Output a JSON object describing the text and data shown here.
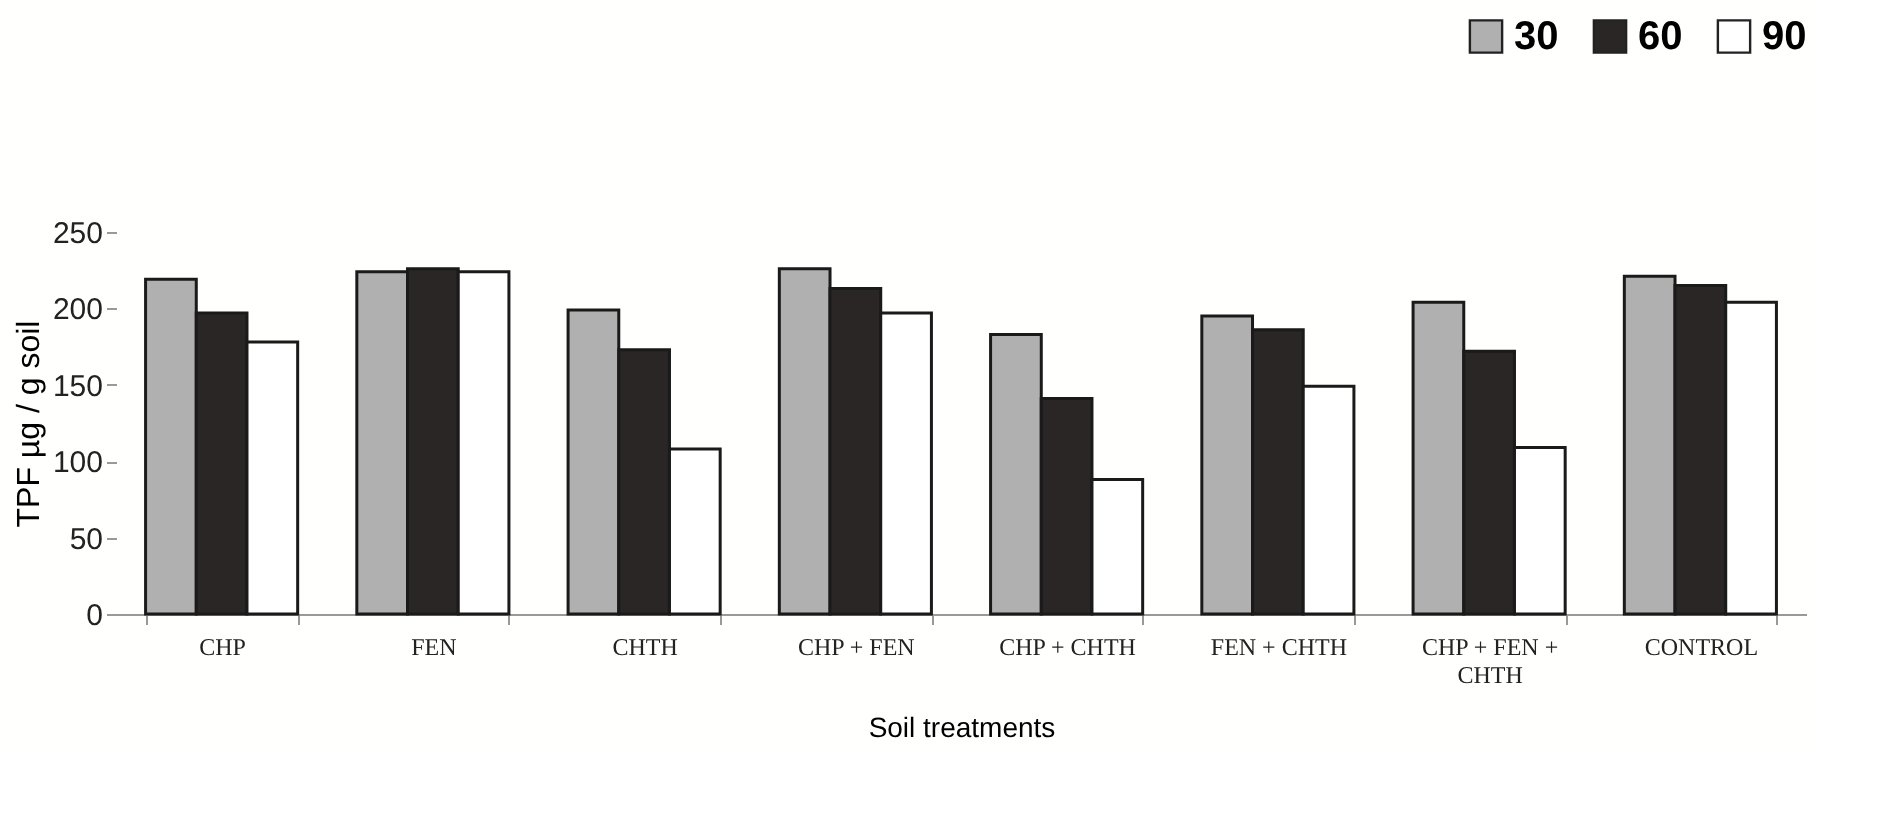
{
  "chart_data": {
    "type": "bar",
    "xlabel": "Soil treatments",
    "ylabel": "TPF µg / g soil",
    "categories": [
      "CHP",
      "FEN",
      "CHTH",
      "CHP + FEN",
      "CHP + CHTH",
      "FEN + CHTH",
      "CHP + FEN + CHTH",
      "CONTROL"
    ],
    "series": [
      {
        "name": "30",
        "color": "#b0b0b0",
        "values": [
          219,
          224,
          199,
          226,
          183,
          195,
          204,
          221
        ]
      },
      {
        "name": "60",
        "color": "#2a2626",
        "values": [
          197,
          226,
          173,
          213,
          141,
          186,
          172,
          215
        ]
      },
      {
        "name": "90",
        "color": "#ffffff",
        "values": [
          178,
          224,
          108,
          197,
          88,
          149,
          109,
          204
        ]
      }
    ],
    "ylim": [
      0,
      250
    ],
    "yticks": [
      0,
      50,
      100,
      150,
      200,
      250
    ],
    "grid": false,
    "legend": "top right"
  }
}
